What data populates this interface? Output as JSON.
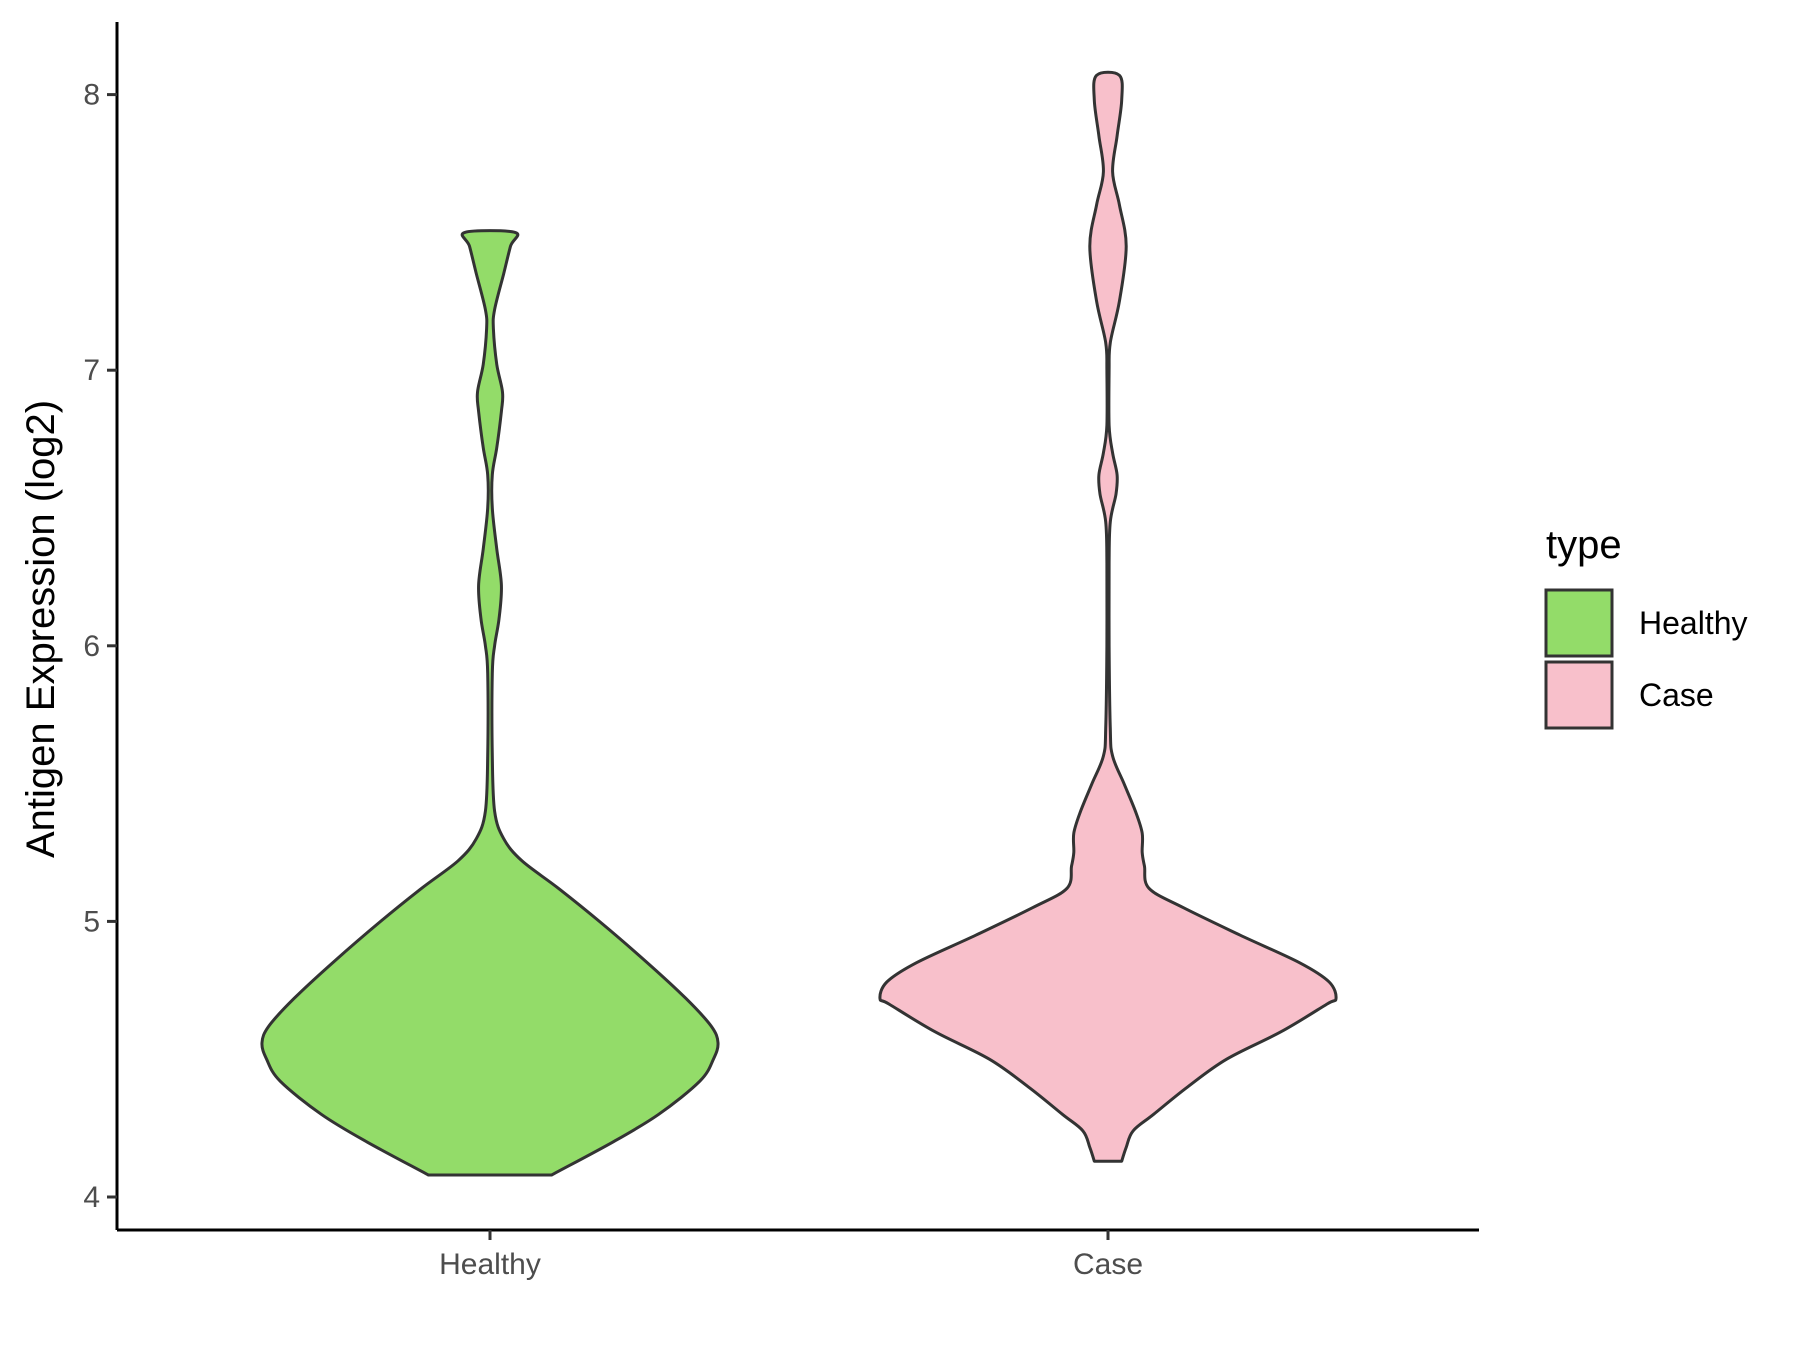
{
  "chart_data": {
    "type": "violin",
    "title": "",
    "xlabel": "",
    "ylabel": "Antigen Expression (log2)",
    "categories": [
      "Healthy",
      "Case"
    ],
    "ylim": [
      3.88,
      8.28
    ],
    "yticks": [
      4,
      5,
      6,
      7,
      8
    ],
    "legend": {
      "title": "type",
      "placement": "right",
      "entries": [
        {
          "label": "Healthy",
          "color": "#93dc69"
        },
        {
          "label": "Case",
          "color": "#f8c0cb"
        }
      ]
    },
    "series": [
      {
        "name": "Healthy",
        "color": "#93dc69",
        "y_min": 4.08,
        "y_max": 7.5,
        "density_profile": [
          [
            4.08,
            0.27
          ],
          [
            4.2,
            0.54
          ],
          [
            4.3,
            0.74
          ],
          [
            4.42,
            0.92
          ],
          [
            4.5,
            0.98
          ],
          [
            4.56,
            1.0
          ],
          [
            4.62,
            0.97
          ],
          [
            4.72,
            0.86
          ],
          [
            4.85,
            0.69
          ],
          [
            5.0,
            0.48
          ],
          [
            5.12,
            0.3
          ],
          [
            5.22,
            0.14
          ],
          [
            5.3,
            0.06
          ],
          [
            5.4,
            0.02
          ],
          [
            5.6,
            0.01
          ],
          [
            5.9,
            0.01
          ],
          [
            6.0,
            0.02
          ],
          [
            6.1,
            0.04
          ],
          [
            6.22,
            0.05
          ],
          [
            6.35,
            0.03
          ],
          [
            6.5,
            0.01
          ],
          [
            6.62,
            0.01
          ],
          [
            6.72,
            0.03
          ],
          [
            6.85,
            0.05
          ],
          [
            6.92,
            0.055
          ],
          [
            7.02,
            0.03
          ],
          [
            7.15,
            0.015
          ],
          [
            7.22,
            0.02
          ],
          [
            7.35,
            0.06
          ],
          [
            7.45,
            0.09
          ],
          [
            7.5,
            0.11
          ]
        ]
      },
      {
        "name": "Case",
        "color": "#f8c0cb",
        "y_min": 4.13,
        "y_max": 8.07,
        "density_profile": [
          [
            4.13,
            0.06
          ],
          [
            4.18,
            0.08
          ],
          [
            4.24,
            0.11
          ],
          [
            4.3,
            0.2
          ],
          [
            4.4,
            0.35
          ],
          [
            4.5,
            0.52
          ],
          [
            4.6,
            0.76
          ],
          [
            4.7,
            0.96
          ],
          [
            4.72,
            1.0
          ],
          [
            4.78,
            0.97
          ],
          [
            4.85,
            0.84
          ],
          [
            4.95,
            0.58
          ],
          [
            5.05,
            0.33
          ],
          [
            5.12,
            0.18
          ],
          [
            5.2,
            0.16
          ],
          [
            5.25,
            0.15
          ],
          [
            5.32,
            0.15
          ],
          [
            5.4,
            0.12
          ],
          [
            5.5,
            0.07
          ],
          [
            5.6,
            0.02
          ],
          [
            5.7,
            0.01
          ],
          [
            6.0,
            0.005
          ],
          [
            6.3,
            0.005
          ],
          [
            6.45,
            0.01
          ],
          [
            6.55,
            0.035
          ],
          [
            6.62,
            0.04
          ],
          [
            6.7,
            0.02
          ],
          [
            6.8,
            0.005
          ],
          [
            7.0,
            0.005
          ],
          [
            7.1,
            0.01
          ],
          [
            7.25,
            0.05
          ],
          [
            7.45,
            0.08
          ],
          [
            7.6,
            0.05
          ],
          [
            7.72,
            0.02
          ],
          [
            7.85,
            0.04
          ],
          [
            7.98,
            0.06
          ],
          [
            8.07,
            0.05
          ]
        ]
      }
    ]
  }
}
